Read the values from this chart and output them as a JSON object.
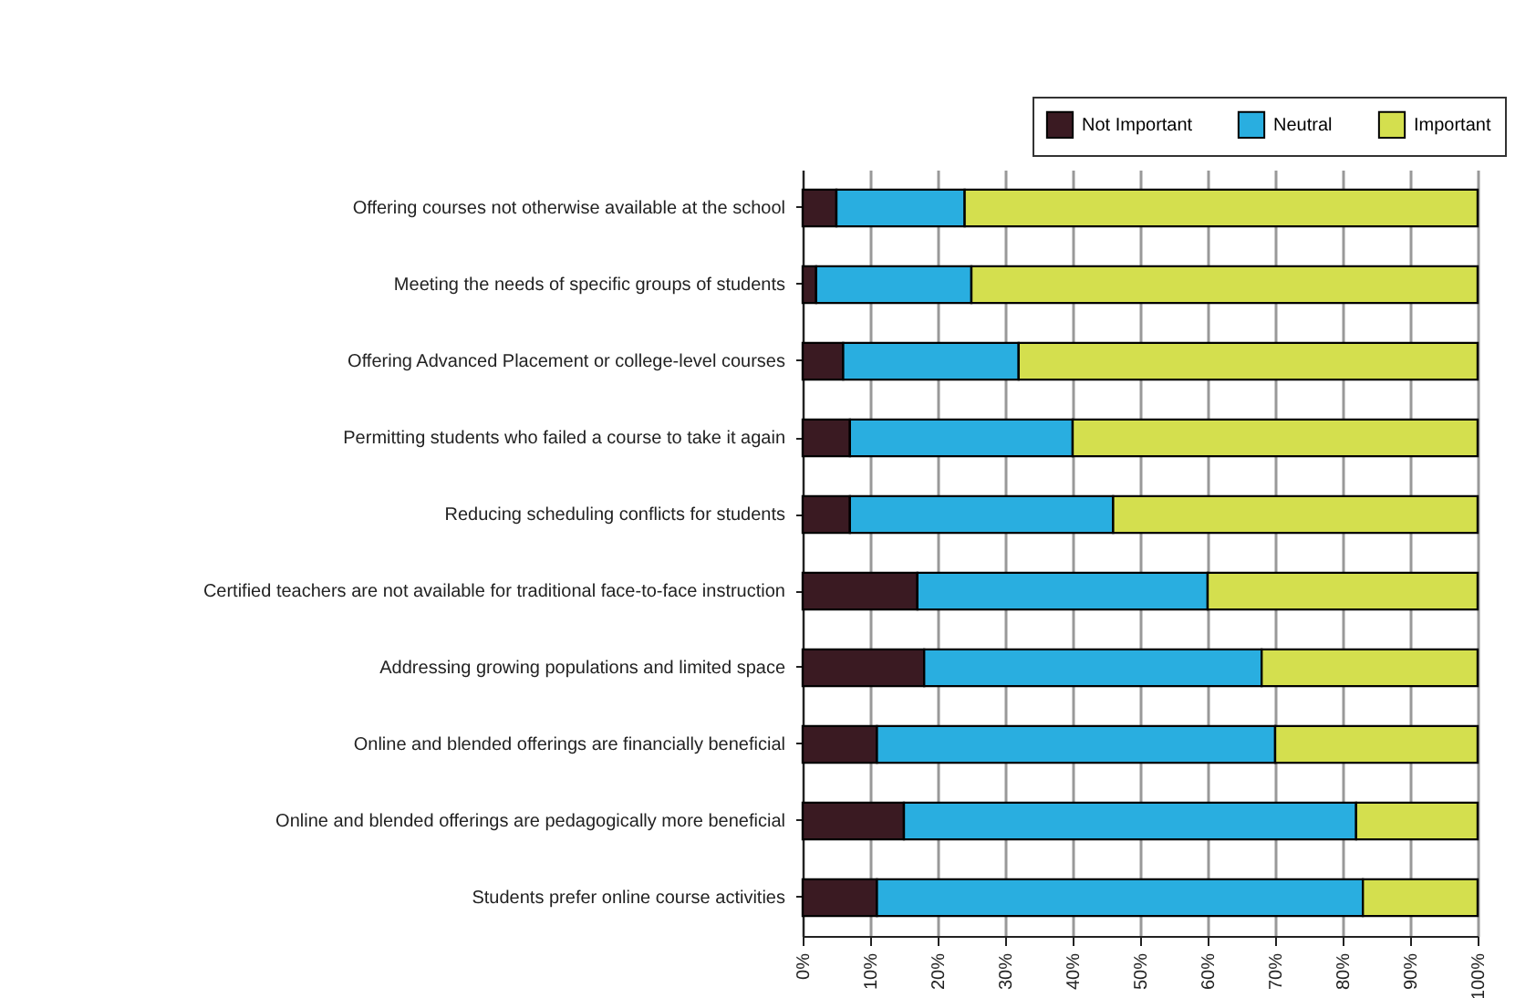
{
  "chart_data": {
    "type": "bar",
    "orientation": "horizontal",
    "stacked": true,
    "categories": [
      "Offering courses not otherwise available at the school",
      "Meeting the needs of specific groups of students",
      "Offering Advanced Placement or college-level courses",
      "Permitting students who failed a course to take it again",
      "Reducing scheduling conflicts for students",
      "Certified teachers are not available for traditional face-to-face instruction",
      "Addressing growing populations and limited space",
      "Online and blended offerings are financially beneficial",
      "Online and blended offerings are pedagogically more beneficial",
      "Students prefer online course activities"
    ],
    "series": [
      {
        "name": "Not Important",
        "color": "#3a1a22",
        "values": [
          5,
          2,
          6,
          7,
          7,
          17,
          18,
          11,
          15,
          11
        ]
      },
      {
        "name": "Neutral",
        "color": "#29aee0",
        "values": [
          19,
          23,
          26,
          33,
          39,
          43,
          50,
          59,
          67,
          72
        ]
      },
      {
        "name": "Important",
        "color": "#d4df4e",
        "values": [
          76,
          75,
          68,
          60,
          54,
          40,
          32,
          30,
          18,
          17
        ]
      }
    ],
    "xlim": [
      0,
      100
    ],
    "xticks": [
      {
        "value": 0,
        "label": "0%"
      },
      {
        "value": 10,
        "label": "10%"
      },
      {
        "value": 20,
        "label": "20%"
      },
      {
        "value": 30,
        "label": "30%"
      },
      {
        "value": 40,
        "label": "40%"
      },
      {
        "value": 50,
        "label": "50%"
      },
      {
        "value": 60,
        "label": "60%"
      },
      {
        "value": 70,
        "label": "70%"
      },
      {
        "value": 80,
        "label": "80%"
      },
      {
        "value": 90,
        "label": "90%"
      },
      {
        "value": 100,
        "label": "100%"
      }
    ],
    "grid": "x",
    "legend": "top right"
  }
}
